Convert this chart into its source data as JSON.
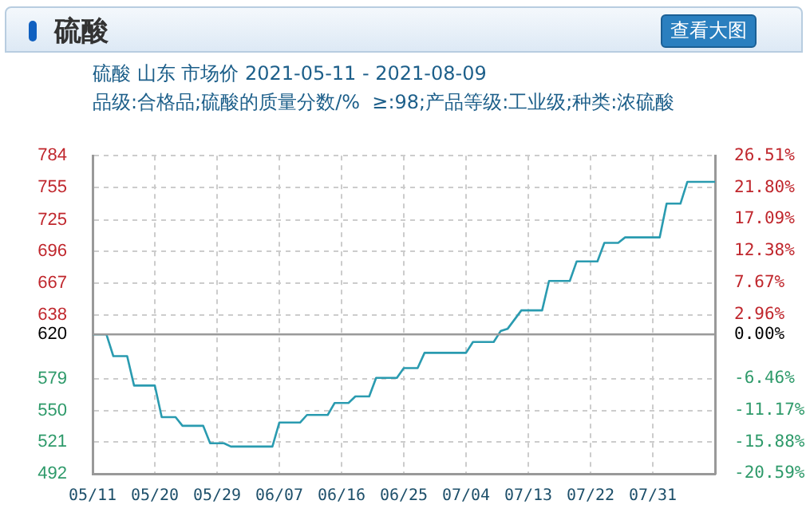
{
  "chart_data": {
    "type": "line",
    "title": "硫酸",
    "subtitle": "硫酸 山东 市场价 2021-05-11 - 2021-08-09",
    "annotations": [
      "品级:合格品;硫酸的质量分数/%  ≥:98;产品等级:工业级;种类:浓硫酸",
      "查看大图"
    ],
    "x": [
      "--05-11",
      "--05-13",
      "--05-14",
      "--05-16",
      "--05-17",
      "--05-20",
      "--05-21",
      "--05-23",
      "--05-24",
      "--05-27",
      "--05-28",
      "--05-30",
      "--05-31",
      "--06-06",
      "--06-07",
      "--06-10",
      "--06-11",
      "--06-14",
      "--06-15",
      "--06-17",
      "--06-18",
      "--06-20",
      "--06-21",
      "--06-24",
      "--06-25",
      "--06-27",
      "--06-28",
      "--07-04",
      "--07-05",
      "--07-08",
      "--07-09",
      "--07-10",
      "--07-12",
      "--07-15",
      "--07-16",
      "--07-19",
      "--07-20",
      "--07-23",
      "--07-24",
      "--07-26",
      "--07-27",
      "--08-01",
      "--08-02",
      "--08-04",
      "--08-05",
      "--08-09"
    ],
    "series": [
      {
        "color": "#2a9bb0",
        "values": [
          620,
          620,
          600,
          600,
          573,
          573,
          544,
          544,
          536,
          536,
          520,
          520,
          517,
          517,
          539,
          539,
          546,
          546,
          557,
          557,
          563,
          563,
          580,
          580,
          589,
          589,
          603,
          603,
          613,
          613,
          623,
          625,
          642,
          642,
          669,
          669,
          687,
          687,
          704,
          704,
          709,
          709,
          740,
          740,
          760,
          760
        ]
      }
    ],
    "xlim": [
      "--05-11",
      "--08-09"
    ],
    "xticks": [
      {
        "value": "--05-11",
        "label": "05/11"
      },
      {
        "value": "--05-20",
        "label": "05/20"
      },
      {
        "value": "--05-29",
        "label": "05/29"
      },
      {
        "value": "--06-07",
        "label": "06/07"
      },
      {
        "value": "--06-16",
        "label": "06/16"
      },
      {
        "value": "--06-25",
        "label": "06/25"
      },
      {
        "value": "--07-04",
        "label": "07/04"
      },
      {
        "value": "--07-13",
        "label": "07/13"
      },
      {
        "value": "--07-22",
        "label": "07/22"
      },
      {
        "value": "--07-31",
        "label": "07/31"
      },
      {
        "value": "--08-09",
        "label": null
      }
    ],
    "ylim": [
      492,
      784
    ],
    "yticks": [
      492,
      521,
      550,
      579,
      620,
      638,
      667,
      696,
      725,
      755,
      784
    ],
    "y2lim": [
      -20.59,
      26.51
    ],
    "y2ticks": [
      {
        "value": -20.59,
        "label": "-20.59%"
      },
      {
        "value": -15.88,
        "label": "-15.88%"
      },
      {
        "value": -11.17,
        "label": "-11.17%"
      },
      {
        "value": -6.46,
        "label": "-6.46%"
      },
      {
        "value": 0,
        "label": "0.00%"
      },
      {
        "value": 2.96,
        "label": "2.96%"
      },
      {
        "value": 7.67,
        "label": "7.67%"
      },
      {
        "value": 12.38,
        "label": "12.38%"
      },
      {
        "value": 17.09,
        "label": "17.09%"
      },
      {
        "value": 21.8,
        "label": "21.80%"
      },
      {
        "value": 26.51,
        "label": "26.51%"
      }
    ],
    "ref_lines": [
      {
        "axis": "y",
        "value": 620,
        "color": "#999999"
      }
    ],
    "grid": true,
    "legend": false,
    "marker": "none",
    "line_style": "solid"
  }
}
